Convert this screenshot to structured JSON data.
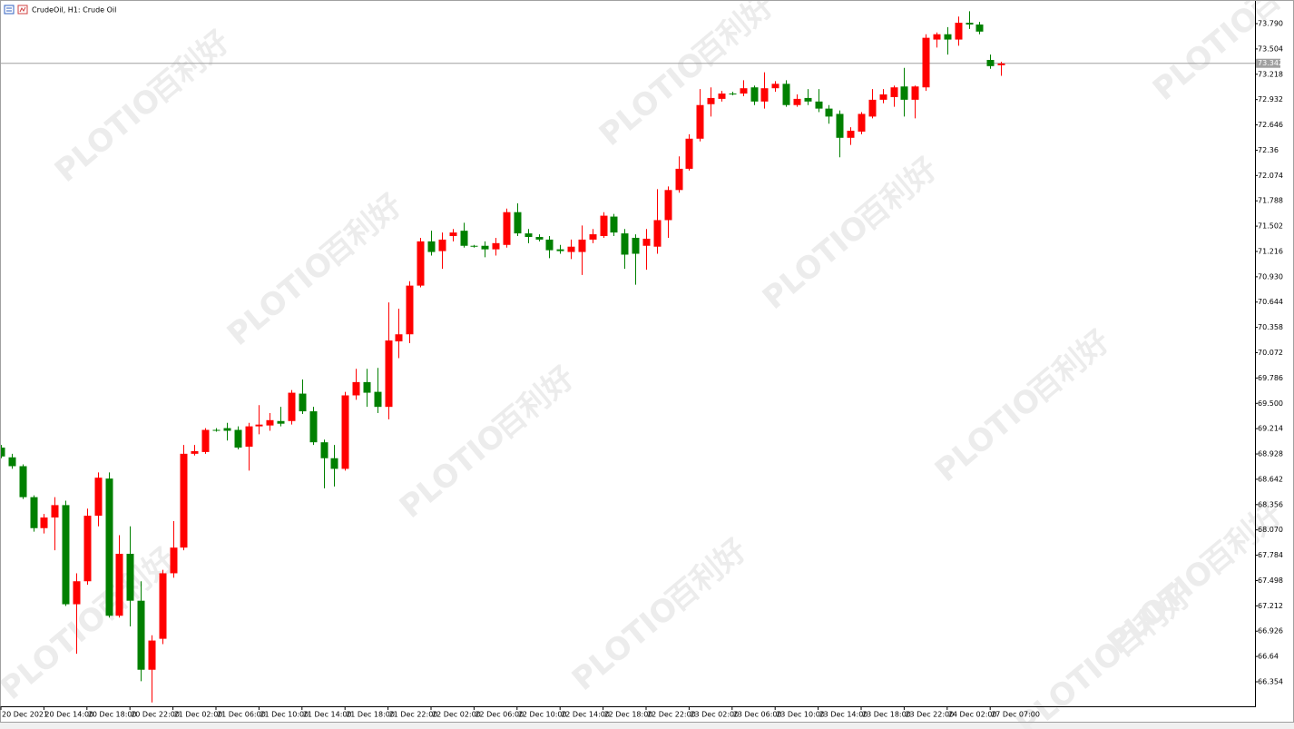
{
  "watermark": [
    "百利好",
    "PLOTIO"
  ],
  "chart_data": {
    "type": "candlestick",
    "title": "CrudeOil, H1:  Crude Oil",
    "up_color": "#ff0000",
    "down_color": "#008000",
    "last_price": 73.342,
    "ylim": [
      66.077,
      74.057
    ],
    "yticks": [
      66.354,
      66.64,
      66.926,
      67.212,
      67.498,
      67.784,
      {
        "value": 68.07,
        "label": "68.070"
      },
      68.356,
      68.642,
      68.928,
      69.214,
      {
        "value": 69.5,
        "label": "69.500"
      },
      69.786,
      70.072,
      70.358,
      70.644,
      {
        "value": 70.93,
        "label": "70.930"
      },
      71.216,
      71.502,
      71.788,
      72.074,
      72.36,
      72.646,
      72.932,
      73.218,
      73.504,
      {
        "value": 73.79,
        "label": "73.790"
      }
    ],
    "categories": [
      "20 Dec 2021",
      null,
      null,
      null,
      "20 Dec 14:00",
      null,
      null,
      null,
      "20 Dec 18:00",
      null,
      null,
      null,
      "20 Dec 22:00",
      null,
      null,
      null,
      "21 Dec 02:00",
      null,
      null,
      null,
      "21 Dec 06:00",
      null,
      null,
      null,
      "21 Dec 10:00",
      null,
      null,
      null,
      "21 Dec 14:00",
      null,
      null,
      null,
      "21 Dec 18:00",
      null,
      null,
      null,
      "21 Dec 22:00",
      null,
      null,
      null,
      "22 Dec 02:00",
      null,
      null,
      null,
      "22 Dec 06:00",
      null,
      null,
      null,
      "22 Dec 10:00",
      null,
      null,
      null,
      "22 Dec 14:00",
      null,
      null,
      null,
      "22 Dec 18:00",
      null,
      null,
      null,
      "22 Dec 22:00",
      null,
      null,
      null,
      "23 Dec 02:00",
      null,
      null,
      null,
      "23 Dec 06:00",
      null,
      null,
      null,
      "23 Dec 10:00",
      null,
      null,
      null,
      "23 Dec 14:00",
      null,
      null,
      null,
      "23 Dec 18:00",
      null,
      null,
      null,
      "23 Dec 22:00",
      null,
      null,
      null,
      "24 Dec 02:00",
      null,
      null,
      null,
      "27 Dec 07:00",
      null
    ],
    "open": [
      69.0,
      68.89,
      68.79,
      68.44,
      68.09,
      68.21,
      68.35,
      67.23,
      67.49,
      68.23,
      68.65,
      67.1,
      67.8,
      67.27,
      66.49,
      66.84,
      67.58,
      67.87,
      68.93,
      68.95,
      69.2,
      69.22,
      69.2,
      69.01,
      69.24,
      69.25,
      69.3,
      69.3,
      69.61,
      69.41,
      69.06,
      68.88,
      68.76,
      69.59,
      69.74,
      69.63,
      69.46,
      70.2,
      70.28,
      70.83,
      71.33,
      71.22,
      71.39,
      71.45,
      71.28,
      71.28,
      71.24,
      71.29,
      71.66,
      71.42,
      71.38,
      71.35,
      71.24,
      71.21,
      71.21,
      71.35,
      71.39,
      71.61,
      71.42,
      71.37,
      71.28,
      71.27,
      71.57,
      71.91,
      72.15,
      72.49,
      72.88,
      72.94,
      73.0,
      73.0,
      73.07,
      72.91,
      73.06,
      73.11,
      72.87,
      72.95,
      72.91,
      72.83,
      72.77,
      72.5,
      72.57,
      72.74,
      72.93,
      72.96,
      73.08,
      72.93,
      73.07,
      73.61,
      73.67,
      73.61,
      73.8,
      73.78,
      73.38,
      73.32
    ],
    "high": [
      69.03,
      68.93,
      68.81,
      68.46,
      68.25,
      68.44,
      68.4,
      67.58,
      68.31,
      68.72,
      68.72,
      68.01,
      68.11,
      67.49,
      66.88,
      67.62,
      68.17,
      69.03,
      69.03,
      69.22,
      69.22,
      69.28,
      69.24,
      69.28,
      69.48,
      69.39,
      69.46,
      69.65,
      69.77,
      69.46,
      69.09,
      69.03,
      69.63,
      69.89,
      69.89,
      69.9,
      70.64,
      70.57,
      70.88,
      71.37,
      71.45,
      71.43,
      71.47,
      71.54,
      71.29,
      71.33,
      71.37,
      71.7,
      71.76,
      71.47,
      71.41,
      71.39,
      71.29,
      71.35,
      71.51,
      71.47,
      71.66,
      71.64,
      71.47,
      71.41,
      71.47,
      71.92,
      71.95,
      72.29,
      72.54,
      73.05,
      73.07,
      73.03,
      73.02,
      73.15,
      73.09,
      73.24,
      73.14,
      73.15,
      72.99,
      73.05,
      73.05,
      72.87,
      72.81,
      72.62,
      72.79,
      73.05,
      73.05,
      73.09,
      73.29,
      73.09,
      73.67,
      73.69,
      73.75,
      73.87,
      73.93,
      73.81,
      73.44,
      73.36
    ],
    "low": [
      68.88,
      68.76,
      68.42,
      68.05,
      68.03,
      67.84,
      67.21,
      66.67,
      67.45,
      68.11,
      67.08,
      67.08,
      66.98,
      66.36,
      66.12,
      66.78,
      67.53,
      67.84,
      68.91,
      68.93,
      69.18,
      69.08,
      68.98,
      68.74,
      69.15,
      69.19,
      69.24,
      69.26,
      69.38,
      69.03,
      68.54,
      68.56,
      68.74,
      69.54,
      69.46,
      69.39,
      69.32,
      70.01,
      70.18,
      70.81,
      71.17,
      71.02,
      71.33,
      71.26,
      71.26,
      71.15,
      71.17,
      71.26,
      71.39,
      71.31,
      71.33,
      71.14,
      71.19,
      71.13,
      70.95,
      71.31,
      71.37,
      71.39,
      71.02,
      70.84,
      71.01,
      71.19,
      71.37,
      71.88,
      72.13,
      72.46,
      72.74,
      72.91,
      72.98,
      72.97,
      72.87,
      72.83,
      73.02,
      72.85,
      72.85,
      72.87,
      72.79,
      72.66,
      72.28,
      72.42,
      72.54,
      72.72,
      72.89,
      72.85,
      72.74,
      72.72,
      73.03,
      73.52,
      73.44,
      73.54,
      73.73,
      73.67,
      73.28,
      73.2
    ],
    "close": [
      68.9,
      68.79,
      68.44,
      68.09,
      68.21,
      68.35,
      67.23,
      67.49,
      68.23,
      68.66,
      67.1,
      67.8,
      67.27,
      66.49,
      66.82,
      67.58,
      67.87,
      68.93,
      68.96,
      69.2,
      69.19,
      69.19,
      69.0,
      69.24,
      69.26,
      69.31,
      69.27,
      69.62,
      69.41,
      69.06,
      68.88,
      68.76,
      69.59,
      69.74,
      69.62,
      69.46,
      70.21,
      70.28,
      70.83,
      71.33,
      71.21,
      71.35,
      71.43,
      71.28,
      71.27,
      71.24,
      71.31,
      71.66,
      71.42,
      71.38,
      71.35,
      71.23,
      71.22,
      71.27,
      71.35,
      71.41,
      71.62,
      71.43,
      71.18,
      71.19,
      71.36,
      71.57,
      71.91,
      72.15,
      72.49,
      72.87,
      72.95,
      73.0,
      72.99,
      73.06,
      72.91,
      73.06,
      73.11,
      72.87,
      72.94,
      72.91,
      72.83,
      72.74,
      72.5,
      72.58,
      72.77,
      72.93,
      72.99,
      73.07,
      72.93,
      73.08,
      73.63,
      73.67,
      73.61,
      73.8,
      73.78,
      73.7,
      73.31,
      73.34
    ]
  }
}
